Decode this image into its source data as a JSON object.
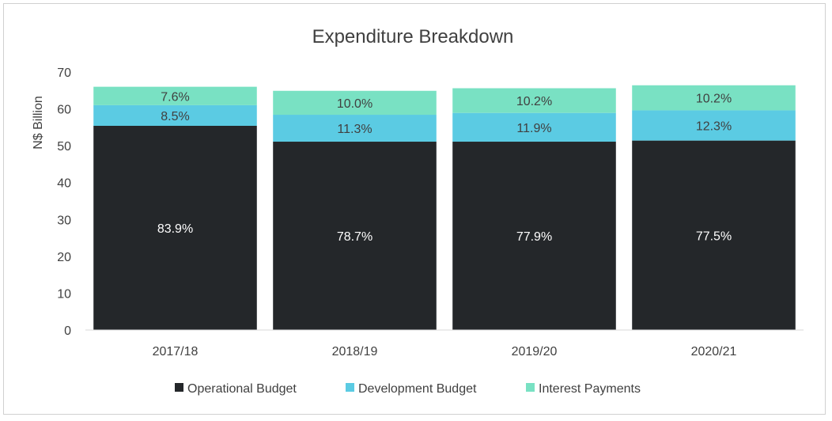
{
  "chart_data": {
    "type": "bar",
    "stacked": true,
    "title": "Expenditure Breakdown",
    "xlabel": "",
    "ylabel": "N$ Billion",
    "ylim": [
      0,
      70
    ],
    "yticks": [
      0,
      10,
      20,
      30,
      40,
      50,
      60,
      70
    ],
    "grid": false,
    "legend_position": "bottom",
    "categories": [
      "2017/18",
      "2018/19",
      "2019/20",
      "2020/21"
    ],
    "series": [
      {
        "name": "Operational Budget",
        "color": "#24272a",
        "label_color": "#ffffff",
        "values": [
          55.4,
          51.1,
          51.1,
          51.4
        ],
        "labels": [
          "83.9%",
          "78.7%",
          "77.9%",
          "77.5%"
        ]
      },
      {
        "name": "Development Budget",
        "color": "#5bcbe3",
        "label_color": "#404040",
        "values": [
          5.6,
          7.3,
          7.8,
          8.2
        ],
        "labels": [
          "8.5%",
          "11.3%",
          "11.9%",
          "12.3%"
        ]
      },
      {
        "name": "Interest Payments",
        "color": "#79e1c3",
        "label_color": "#404040",
        "values": [
          5.0,
          6.5,
          6.7,
          6.8
        ],
        "labels": [
          "7.6%",
          "10.0%",
          "10.2%",
          "10.2%"
        ]
      }
    ]
  }
}
